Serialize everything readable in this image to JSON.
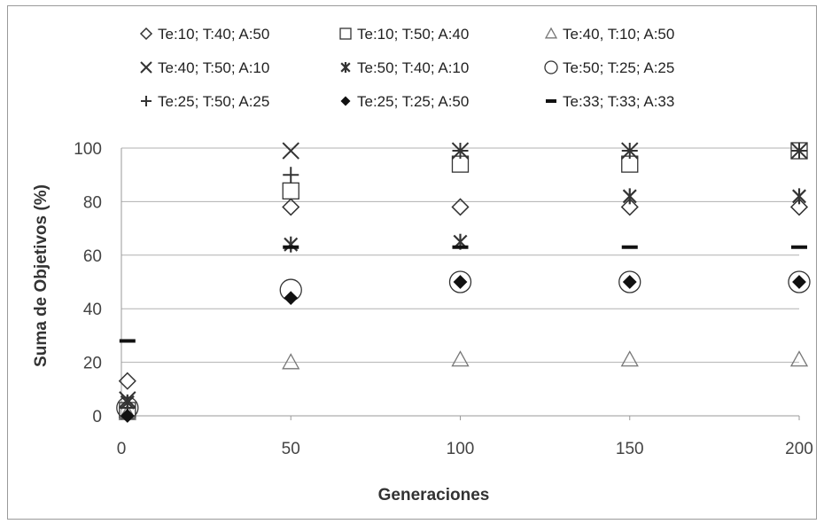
{
  "chart_data": {
    "type": "scatter",
    "title": "",
    "xlabel": "Generaciones",
    "ylabel": "Suma de Objetivos (%)",
    "xlim": [
      0,
      200
    ],
    "ylim": [
      0,
      100
    ],
    "xticks": [
      0,
      50,
      100,
      150,
      200
    ],
    "yticks": [
      0,
      20,
      40,
      60,
      80,
      100
    ],
    "grid": "horizontal",
    "legend_position": "top",
    "series": [
      {
        "name": "Te:10; T:40; A:50",
        "marker": "diamond-open",
        "x": [
          1,
          50,
          100,
          150,
          200
        ],
        "y": [
          13,
          78,
          78,
          78,
          78
        ]
      },
      {
        "name": "Te:10; T:50; A:40",
        "marker": "square-open",
        "x": [
          1,
          50,
          100,
          150,
          200
        ],
        "y": [
          2,
          84,
          94,
          94,
          99
        ]
      },
      {
        "name": "Te:40, T:10; A:50",
        "marker": "triangle-open",
        "x": [
          1,
          50,
          100,
          150,
          200
        ],
        "y": [
          1,
          20,
          21,
          21,
          21
        ]
      },
      {
        "name": "Te:40; T:50; A:10",
        "marker": "x",
        "x": [
          1,
          50,
          100,
          150,
          200
        ],
        "y": [
          6,
          99,
          99,
          99,
          99
        ]
      },
      {
        "name": "Te:50; T:40; A:10",
        "marker": "asterisk",
        "x": [
          1,
          50,
          100,
          150,
          200
        ],
        "y": [
          5,
          64,
          65,
          82,
          82
        ]
      },
      {
        "name": "Te:50; T:25; A:25",
        "marker": "circle-open",
        "x": [
          1,
          50,
          100,
          150,
          200
        ],
        "y": [
          3,
          47,
          50,
          50,
          50
        ]
      },
      {
        "name": "Te:25; T:50; A:25",
        "marker": "plus",
        "x": [
          1,
          50,
          100,
          150,
          200
        ],
        "y": [
          3,
          90,
          99,
          99,
          99
        ]
      },
      {
        "name": "Te:25; T:25; A:50",
        "marker": "diamond-filled",
        "x": [
          1,
          50,
          100,
          150,
          200
        ],
        "y": [
          0,
          44,
          50,
          50,
          50
        ]
      },
      {
        "name": "Te:33; T:33; A:33",
        "marker": "dash",
        "x": [
          1,
          50,
          100,
          150,
          200
        ],
        "y": [
          28,
          63,
          63,
          63,
          63
        ]
      }
    ]
  },
  "colors": {
    "marker": "#333333",
    "marker_light": "#777777",
    "grid": "#b0b0b0",
    "axis": "#9a9a9a"
  }
}
